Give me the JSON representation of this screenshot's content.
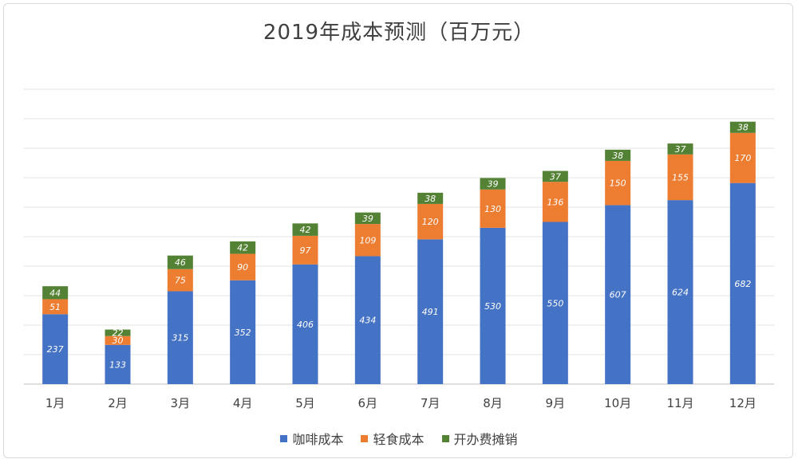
{
  "chart_data": {
    "type": "bar",
    "stacked": true,
    "title": "2019年成本预测（百万元）",
    "categories": [
      "1月",
      "2月",
      "3月",
      "4月",
      "5月",
      "6月",
      "7月",
      "8月",
      "9月",
      "10月",
      "11月",
      "12月"
    ],
    "series": [
      {
        "name": "咖啡成本",
        "color": "#4472C4",
        "values": [
          237,
          133,
          315,
          352,
          406,
          434,
          491,
          530,
          550,
          607,
          624,
          682
        ]
      },
      {
        "name": "轻食成本",
        "color": "#ED7D31",
        "values": [
          51,
          30,
          75,
          90,
          97,
          109,
          120,
          130,
          136,
          150,
          155,
          170
        ]
      },
      {
        "name": "开办费摊销",
        "color": "#548235",
        "values": [
          44,
          22,
          46,
          42,
          42,
          39,
          38,
          39,
          37,
          38,
          37,
          38
        ]
      }
    ],
    "ylim": [
      0,
      1000
    ],
    "gridlines": true,
    "legend_position": "bottom"
  }
}
